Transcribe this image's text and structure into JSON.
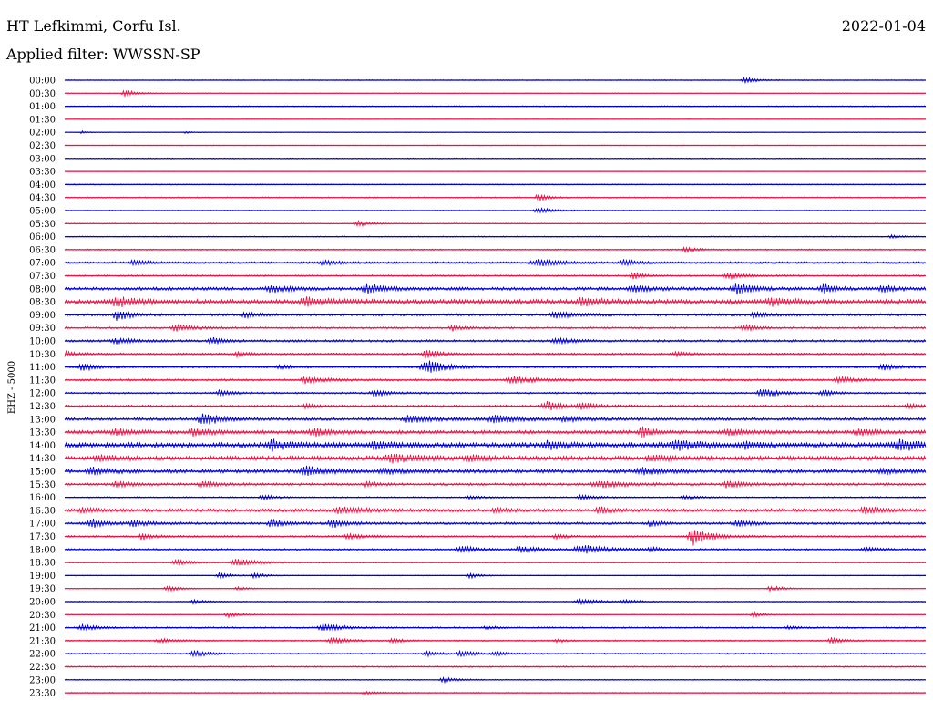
{
  "header": {
    "station": "HT Lefkimmi, Corfu Isl.",
    "date": "2022-01-04",
    "filter_prefix": "Applied filter: ",
    "filter": "WWSSN-SP",
    "filter_label": "Applied filter: WWSSN-SP"
  },
  "colors": {
    "even_trace": "#0000dd",
    "odd_trace": "#ee1144",
    "background": "#ffffff",
    "text": "#000000"
  },
  "chart_data": {
    "type": "line",
    "title": "HT Lefkimmi, Corfu Isl.",
    "subtitle": "Applied filter: WWSSN-SP",
    "ylabel": "EHZ - 5000",
    "xlabel": "",
    "grid": false,
    "legend": "none",
    "x_span_minutes": 30,
    "rows": [
      {
        "time": "00:00",
        "noise": 0.5,
        "events": [
          {
            "t": 0.79,
            "amp": 4,
            "dur": 0.012
          }
        ]
      },
      {
        "time": "00:30",
        "noise": 0.4,
        "events": [
          {
            "t": 0.07,
            "amp": 4,
            "dur": 0.012
          }
        ]
      },
      {
        "time": "01:00",
        "noise": 0.6,
        "events": []
      },
      {
        "time": "01:30",
        "noise": 0.4,
        "events": []
      },
      {
        "time": "02:00",
        "noise": 0.4,
        "events": [
          {
            "t": 0.02,
            "amp": 1.5,
            "dur": 0.006
          },
          {
            "t": 0.14,
            "amp": 1.5,
            "dur": 0.006
          }
        ]
      },
      {
        "time": "02:30",
        "noise": 0.4,
        "events": []
      },
      {
        "time": "03:00",
        "noise": 0.6,
        "events": []
      },
      {
        "time": "03:30",
        "noise": 0.3,
        "events": []
      },
      {
        "time": "04:00",
        "noise": 0.6,
        "events": []
      },
      {
        "time": "04:30",
        "noise": 0.7,
        "events": [
          {
            "t": 0.55,
            "amp": 4,
            "dur": 0.012
          }
        ]
      },
      {
        "time": "05:00",
        "noise": 0.5,
        "events": [
          {
            "t": 0.55,
            "amp": 3,
            "dur": 0.02
          }
        ]
      },
      {
        "time": "05:30",
        "noise": 0.6,
        "events": [
          {
            "t": 0.34,
            "amp": 4,
            "dur": 0.012
          }
        ]
      },
      {
        "time": "06:00",
        "noise": 0.6,
        "events": [
          {
            "t": 0.96,
            "amp": 2,
            "dur": 0.012
          }
        ]
      },
      {
        "time": "06:30",
        "noise": 0.8,
        "events": [
          {
            "t": 0.72,
            "amp": 4,
            "dur": 0.01
          }
        ]
      },
      {
        "time": "07:00",
        "noise": 1.2,
        "events": [
          {
            "t": 0.08,
            "amp": 3,
            "dur": 0.015
          },
          {
            "t": 0.3,
            "amp": 3,
            "dur": 0.015
          },
          {
            "t": 0.55,
            "amp": 3.5,
            "dur": 0.03
          },
          {
            "t": 0.65,
            "amp": 3,
            "dur": 0.015
          }
        ]
      },
      {
        "time": "07:30",
        "noise": 0.9,
        "events": [
          {
            "t": 0.66,
            "amp": 4.5,
            "dur": 0.012
          },
          {
            "t": 0.77,
            "amp": 3.5,
            "dur": 0.02
          }
        ]
      },
      {
        "time": "08:00",
        "noise": 1.8,
        "events": [
          {
            "t": 0.24,
            "amp": 4,
            "dur": 0.02
          },
          {
            "t": 0.35,
            "amp": 5,
            "dur": 0.02
          },
          {
            "t": 0.66,
            "amp": 3.5,
            "dur": 0.02
          },
          {
            "t": 0.78,
            "amp": 6,
            "dur": 0.02
          },
          {
            "t": 0.88,
            "amp": 6,
            "dur": 0.012
          },
          {
            "t": 0.95,
            "amp": 4,
            "dur": 0.015
          }
        ]
      },
      {
        "time": "08:30",
        "noise": 2.6,
        "events": [
          {
            "t": 0.06,
            "amp": 5,
            "dur": 0.02
          },
          {
            "t": 0.28,
            "amp": 5,
            "dur": 0.02
          },
          {
            "t": 0.6,
            "amp": 4,
            "dur": 0.02
          },
          {
            "t": 0.82,
            "amp": 4,
            "dur": 0.02
          }
        ]
      },
      {
        "time": "09:00",
        "noise": 1.4,
        "events": [
          {
            "t": 0.06,
            "amp": 6,
            "dur": 0.015
          },
          {
            "t": 0.21,
            "amp": 3,
            "dur": 0.015
          },
          {
            "t": 0.57,
            "amp": 4,
            "dur": 0.02
          },
          {
            "t": 0.8,
            "amp": 3,
            "dur": 0.015
          }
        ]
      },
      {
        "time": "09:30",
        "noise": 1.1,
        "events": [
          {
            "t": 0.13,
            "amp": 4,
            "dur": 0.02
          },
          {
            "t": 0.45,
            "amp": 3,
            "dur": 0.015
          },
          {
            "t": 0.79,
            "amp": 3,
            "dur": 0.015
          }
        ]
      },
      {
        "time": "10:00",
        "noise": 1.3,
        "events": [
          {
            "t": 0.06,
            "amp": 3,
            "dur": 0.02
          },
          {
            "t": 0.17,
            "amp": 4,
            "dur": 0.012
          },
          {
            "t": 0.57,
            "amp": 3,
            "dur": 0.02
          }
        ]
      },
      {
        "time": "10:30",
        "noise": 1.1,
        "events": [
          {
            "t": 0.0,
            "amp": 3,
            "dur": 0.015
          },
          {
            "t": 0.2,
            "amp": 3,
            "dur": 0.012
          },
          {
            "t": 0.42,
            "amp": 5,
            "dur": 0.015
          },
          {
            "t": 0.71,
            "amp": 3,
            "dur": 0.012
          }
        ]
      },
      {
        "time": "11:00",
        "noise": 1.2,
        "events": [
          {
            "t": 0.02,
            "amp": 4,
            "dur": 0.015
          },
          {
            "t": 0.25,
            "amp": 3,
            "dur": 0.012
          },
          {
            "t": 0.42,
            "amp": 7,
            "dur": 0.025
          },
          {
            "t": 0.95,
            "amp": 4,
            "dur": 0.015
          }
        ]
      },
      {
        "time": "11:30",
        "noise": 1.2,
        "events": [
          {
            "t": 0.28,
            "amp": 4,
            "dur": 0.02
          },
          {
            "t": 0.52,
            "amp": 3.5,
            "dur": 0.03
          },
          {
            "t": 0.9,
            "amp": 3,
            "dur": 0.02
          }
        ]
      },
      {
        "time": "12:00",
        "noise": 1.0,
        "events": [
          {
            "t": 0.18,
            "amp": 4,
            "dur": 0.012
          },
          {
            "t": 0.36,
            "amp": 3,
            "dur": 0.02
          },
          {
            "t": 0.81,
            "amp": 5,
            "dur": 0.02
          },
          {
            "t": 0.88,
            "amp": 4,
            "dur": 0.012
          }
        ]
      },
      {
        "time": "12:30",
        "noise": 1.2,
        "events": [
          {
            "t": 0.28,
            "amp": 3,
            "dur": 0.012
          },
          {
            "t": 0.56,
            "amp": 5,
            "dur": 0.02
          },
          {
            "t": 0.6,
            "amp": 3,
            "dur": 0.02
          },
          {
            "t": 0.98,
            "amp": 3,
            "dur": 0.012
          }
        ]
      },
      {
        "time": "13:00",
        "noise": 1.6,
        "events": [
          {
            "t": 0.16,
            "amp": 7,
            "dur": 0.02
          },
          {
            "t": 0.4,
            "amp": 4,
            "dur": 0.025
          },
          {
            "t": 0.5,
            "amp": 4,
            "dur": 0.03
          },
          {
            "t": 0.58,
            "amp": 3,
            "dur": 0.02
          }
        ]
      },
      {
        "time": "13:30",
        "noise": 2.0,
        "events": [
          {
            "t": 0.06,
            "amp": 3,
            "dur": 0.02
          },
          {
            "t": 0.15,
            "amp": 4,
            "dur": 0.02
          },
          {
            "t": 0.29,
            "amp": 4,
            "dur": 0.02
          },
          {
            "t": 0.67,
            "amp": 7,
            "dur": 0.012
          },
          {
            "t": 0.77,
            "amp": 4,
            "dur": 0.02
          },
          {
            "t": 0.92,
            "amp": 4,
            "dur": 0.015
          }
        ]
      },
      {
        "time": "14:00",
        "noise": 2.8,
        "events": [
          {
            "t": 0.24,
            "amp": 5,
            "dur": 0.02
          },
          {
            "t": 0.36,
            "amp": 4,
            "dur": 0.02
          },
          {
            "t": 0.56,
            "amp": 4,
            "dur": 0.02
          },
          {
            "t": 0.71,
            "amp": 5,
            "dur": 0.025
          },
          {
            "t": 0.79,
            "amp": 4,
            "dur": 0.015
          },
          {
            "t": 0.97,
            "amp": 5,
            "dur": 0.03
          }
        ]
      },
      {
        "time": "14:30",
        "noise": 2.4,
        "events": [
          {
            "t": 0.04,
            "amp": 3,
            "dur": 0.02
          },
          {
            "t": 0.38,
            "amp": 4,
            "dur": 0.03
          },
          {
            "t": 0.47,
            "amp": 3,
            "dur": 0.02
          },
          {
            "t": 0.68,
            "amp": 3,
            "dur": 0.02
          }
        ]
      },
      {
        "time": "15:00",
        "noise": 2.0,
        "events": [
          {
            "t": 0.03,
            "amp": 4,
            "dur": 0.02
          },
          {
            "t": 0.28,
            "amp": 6,
            "dur": 0.02
          },
          {
            "t": 0.37,
            "amp": 3,
            "dur": 0.02
          },
          {
            "t": 0.67,
            "amp": 4,
            "dur": 0.02
          },
          {
            "t": 0.95,
            "amp": 3,
            "dur": 0.02
          }
        ]
      },
      {
        "time": "15:30",
        "noise": 1.4,
        "events": [
          {
            "t": 0.06,
            "amp": 3,
            "dur": 0.02
          },
          {
            "t": 0.16,
            "amp": 3,
            "dur": 0.02
          },
          {
            "t": 0.35,
            "amp": 3,
            "dur": 0.012
          },
          {
            "t": 0.62,
            "amp": 4,
            "dur": 0.03
          },
          {
            "t": 0.77,
            "amp": 4,
            "dur": 0.02
          }
        ]
      },
      {
        "time": "16:00",
        "noise": 0.8,
        "events": [
          {
            "t": 0.23,
            "amp": 3,
            "dur": 0.012
          },
          {
            "t": 0.47,
            "amp": 2,
            "dur": 0.015
          },
          {
            "t": 0.6,
            "amp": 3,
            "dur": 0.015
          },
          {
            "t": 0.72,
            "amp": 2,
            "dur": 0.015
          }
        ]
      },
      {
        "time": "16:30",
        "noise": 1.8,
        "events": [
          {
            "t": 0.02,
            "amp": 3,
            "dur": 0.015
          },
          {
            "t": 0.32,
            "amp": 3.5,
            "dur": 0.025
          },
          {
            "t": 0.5,
            "amp": 3,
            "dur": 0.012
          },
          {
            "t": 0.62,
            "amp": 4,
            "dur": 0.015
          },
          {
            "t": 0.93,
            "amp": 4,
            "dur": 0.02
          }
        ]
      },
      {
        "time": "17:00",
        "noise": 1.4,
        "events": [
          {
            "t": 0.03,
            "amp": 5,
            "dur": 0.015
          },
          {
            "t": 0.08,
            "amp": 3,
            "dur": 0.02
          },
          {
            "t": 0.24,
            "amp": 5,
            "dur": 0.015
          },
          {
            "t": 0.31,
            "amp": 5,
            "dur": 0.015
          },
          {
            "t": 0.68,
            "amp": 3,
            "dur": 0.012
          },
          {
            "t": 0.78,
            "amp": 3,
            "dur": 0.02
          }
        ]
      },
      {
        "time": "17:30",
        "noise": 1.0,
        "events": [
          {
            "t": 0.09,
            "amp": 4,
            "dur": 0.012
          },
          {
            "t": 0.33,
            "amp": 3,
            "dur": 0.02
          },
          {
            "t": 0.57,
            "amp": 3,
            "dur": 0.012
          },
          {
            "t": 0.73,
            "amp": 10,
            "dur": 0.02
          }
        ]
      },
      {
        "time": "18:00",
        "noise": 1.0,
        "events": [
          {
            "t": 0.46,
            "amp": 4,
            "dur": 0.02
          },
          {
            "t": 0.53,
            "amp": 4,
            "dur": 0.02
          },
          {
            "t": 0.6,
            "amp": 5,
            "dur": 0.03
          },
          {
            "t": 0.68,
            "amp": 3,
            "dur": 0.012
          },
          {
            "t": 0.93,
            "amp": 2,
            "dur": 0.02
          }
        ]
      },
      {
        "time": "18:30",
        "noise": 0.7,
        "events": [
          {
            "t": 0.13,
            "amp": 3,
            "dur": 0.02
          },
          {
            "t": 0.2,
            "amp": 4,
            "dur": 0.025
          }
        ]
      },
      {
        "time": "19:00",
        "noise": 0.5,
        "events": [
          {
            "t": 0.18,
            "amp": 3,
            "dur": 0.015
          },
          {
            "t": 0.22,
            "amp": 3,
            "dur": 0.012
          },
          {
            "t": 0.47,
            "amp": 3,
            "dur": 0.012
          }
        ]
      },
      {
        "time": "19:30",
        "noise": 0.5,
        "events": [
          {
            "t": 0.12,
            "amp": 3,
            "dur": 0.015
          },
          {
            "t": 0.2,
            "amp": 2,
            "dur": 0.012
          },
          {
            "t": 0.82,
            "amp": 3,
            "dur": 0.015
          }
        ]
      },
      {
        "time": "20:00",
        "noise": 0.6,
        "events": [
          {
            "t": 0.15,
            "amp": 3,
            "dur": 0.012
          },
          {
            "t": 0.6,
            "amp": 3,
            "dur": 0.025
          },
          {
            "t": 0.65,
            "amp": 2,
            "dur": 0.015
          }
        ]
      },
      {
        "time": "20:30",
        "noise": 0.5,
        "events": [
          {
            "t": 0.19,
            "amp": 3,
            "dur": 0.015
          },
          {
            "t": 0.8,
            "amp": 3,
            "dur": 0.012
          }
        ]
      },
      {
        "time": "21:00",
        "noise": 0.9,
        "events": [
          {
            "t": 0.02,
            "amp": 3,
            "dur": 0.02
          },
          {
            "t": 0.3,
            "amp": 5,
            "dur": 0.02
          },
          {
            "t": 0.49,
            "amp": 2,
            "dur": 0.012
          },
          {
            "t": 0.84,
            "amp": 2,
            "dur": 0.012
          }
        ]
      },
      {
        "time": "21:30",
        "noise": 0.8,
        "events": [
          {
            "t": 0.11,
            "amp": 2,
            "dur": 0.02
          },
          {
            "t": 0.31,
            "amp": 3,
            "dur": 0.02
          },
          {
            "t": 0.38,
            "amp": 3,
            "dur": 0.012
          },
          {
            "t": 0.57,
            "amp": 2,
            "dur": 0.012
          },
          {
            "t": 0.89,
            "amp": 3,
            "dur": 0.015
          }
        ]
      },
      {
        "time": "22:00",
        "noise": 0.8,
        "events": [
          {
            "t": 0.15,
            "amp": 4,
            "dur": 0.015
          },
          {
            "t": 0.42,
            "amp": 3,
            "dur": 0.015
          },
          {
            "t": 0.46,
            "amp": 3,
            "dur": 0.015
          },
          {
            "t": 0.5,
            "amp": 2,
            "dur": 0.015
          }
        ]
      },
      {
        "time": "22:30",
        "noise": 0.8,
        "events": []
      },
      {
        "time": "23:00",
        "noise": 0.6,
        "events": [
          {
            "t": 0.44,
            "amp": 3,
            "dur": 0.015
          }
        ]
      },
      {
        "time": "23:30",
        "noise": 0.6,
        "events": [
          {
            "t": 0.35,
            "amp": 2,
            "dur": 0.015
          }
        ]
      }
    ]
  }
}
